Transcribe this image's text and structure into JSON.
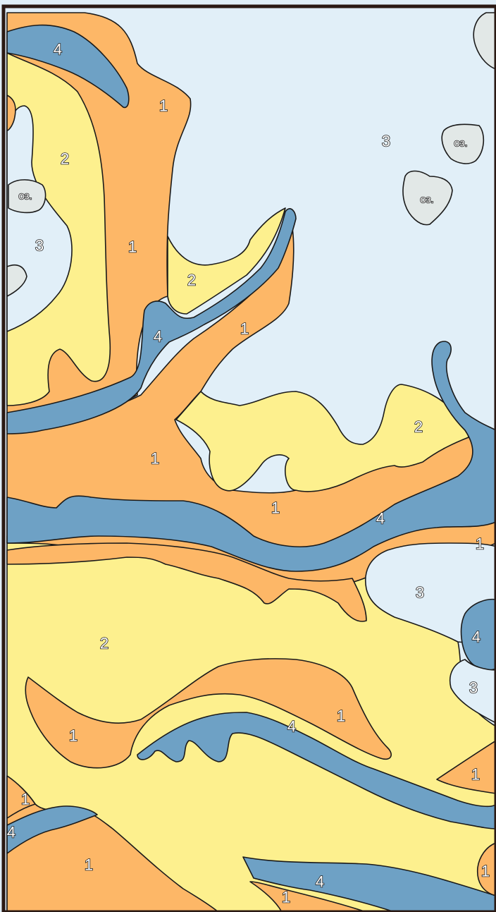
{
  "palette": {
    "zone_1": "#fdb767",
    "zone_2": "#fdf08e",
    "zone_3": "#e1eff8",
    "zone_4": "#6ea1c5",
    "lake": "#e2e8e7",
    "outline": "#1a1a1a",
    "frame": "#2b1a14"
  },
  "map": {
    "labels": {
      "z1": "1",
      "z2": "2",
      "z3": "3",
      "z4": "4",
      "lake": "оз."
    }
  }
}
